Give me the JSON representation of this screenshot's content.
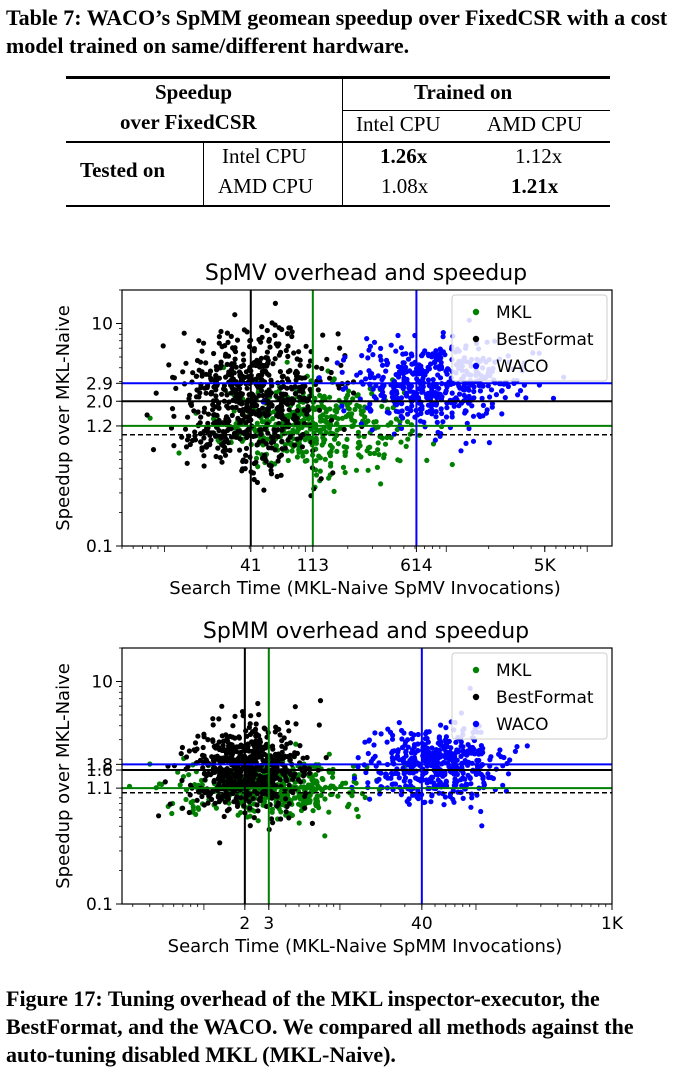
{
  "table": {
    "caption": "Table 7: WACO’s SpMM geomean speedup over FixedCSR with a cost model trained on same/different hardware.",
    "header_left_line1": "Speedup",
    "header_left_line2": "over FixedCSR",
    "header_right": "Trained on",
    "col1": "Intel CPU",
    "col2": "AMD CPU",
    "row_group": "Tested on",
    "rows": [
      {
        "label": "Intel CPU",
        "v1": "1.26x",
        "v2": "1.12x",
        "bold": 1
      },
      {
        "label": "AMD CPU",
        "v1": "1.08x",
        "v2": "1.21x",
        "bold": 2
      }
    ]
  },
  "figure_caption": "Figure 17: Tuning overhead of the MKL inspector-executor, the BestFormat, and the WACO. We compared all methods against the auto-tuning disabled MKL (MKL-Naive).",
  "chart_data": [
    {
      "type": "scatter",
      "title": "SpMV overhead and speedup",
      "xlabel": "Search Time (MKL-Naive SpMV Invocations)",
      "ylabel": "Speedup over MKL-Naive",
      "x_scale": "log",
      "y_scale": "log",
      "xlim": [
        5,
        15000
      ],
      "ylim": [
        0.1,
        20
      ],
      "xticks": [
        {
          "v": 41,
          "label": "41"
        },
        {
          "v": 113,
          "label": "113"
        },
        {
          "v": 614,
          "label": "614"
        },
        {
          "v": 5000,
          "label": "5K"
        }
      ],
      "yticks": [
        {
          "v": 0.1,
          "label": "0.1"
        },
        {
          "v": 1.2,
          "label": "1.2"
        },
        {
          "v": 2.0,
          "label": "2.0"
        },
        {
          "v": 2.9,
          "label": "2.9"
        },
        {
          "v": 10,
          "label": "10"
        }
      ],
      "vlines": [
        {
          "v": 41,
          "color": "#000000"
        },
        {
          "v": 113,
          "color": "#008000"
        },
        {
          "v": 614,
          "color": "#0000ff"
        }
      ],
      "hlines": [
        {
          "v": 2.9,
          "color": "#0000ff"
        },
        {
          "v": 2.0,
          "color": "#000000"
        },
        {
          "v": 1.2,
          "color": "#008000"
        },
        {
          "v": 1.0,
          "color": "#000000",
          "dash": true
        }
      ],
      "legend": {
        "position": "top-right"
      },
      "series": [
        {
          "name": "MKL",
          "color": "#008000",
          "center_x": 113,
          "center_y": 1.2,
          "spread_x": 0.55,
          "spread_y": 0.35,
          "count": 420
        },
        {
          "name": "BestFormat",
          "color": "#000000",
          "center_x": 41,
          "center_y": 2.0,
          "spread_x": 0.45,
          "spread_y": 0.55,
          "count": 650
        },
        {
          "name": "WACO",
          "color": "#0000ff",
          "center_x": 614,
          "center_y": 2.9,
          "spread_x": 0.5,
          "spread_y": 0.35,
          "count": 460
        }
      ]
    },
    {
      "type": "scatter",
      "title": "SpMM overhead and speedup",
      "xlabel": "Search Time (MKL-Naive SpMM Invocations)",
      "ylabel": "Speedup over MKL-Naive",
      "x_scale": "log",
      "y_scale": "log",
      "xlim": [
        0.25,
        1000
      ],
      "ylim": [
        0.1,
        20
      ],
      "xticks": [
        {
          "v": 2,
          "label": "2"
        },
        {
          "v": 3,
          "label": "3"
        },
        {
          "v": 40,
          "label": "40"
        },
        {
          "v": 1000,
          "label": "1K"
        }
      ],
      "yticks": [
        {
          "v": 0.1,
          "label": "0.1"
        },
        {
          "v": 1.1,
          "label": "1.1"
        },
        {
          "v": 1.6,
          "label": "1.6"
        },
        {
          "v": 1.8,
          "label": "1.8"
        },
        {
          "v": 10,
          "label": "10"
        }
      ],
      "vlines": [
        {
          "v": 2,
          "color": "#000000"
        },
        {
          "v": 3,
          "color": "#008000"
        },
        {
          "v": 40,
          "color": "#0000ff"
        }
      ],
      "hlines": [
        {
          "v": 1.8,
          "color": "#0000ff"
        },
        {
          "v": 1.6,
          "color": "#000000"
        },
        {
          "v": 1.1,
          "color": "#008000"
        },
        {
          "v": 1.0,
          "color": "#000000",
          "dash": true
        }
      ],
      "legend": {
        "position": "top-right"
      },
      "series": [
        {
          "name": "MKL",
          "color": "#008000",
          "center_x": 3,
          "center_y": 1.1,
          "spread_x": 0.55,
          "spread_y": 0.22,
          "count": 420
        },
        {
          "name": "BestFormat",
          "color": "#000000",
          "center_x": 2,
          "center_y": 1.6,
          "spread_x": 0.35,
          "spread_y": 0.35,
          "count": 650
        },
        {
          "name": "WACO",
          "color": "#0000ff",
          "center_x": 40,
          "center_y": 1.8,
          "spread_x": 0.4,
          "spread_y": 0.3,
          "count": 460
        }
      ]
    }
  ]
}
